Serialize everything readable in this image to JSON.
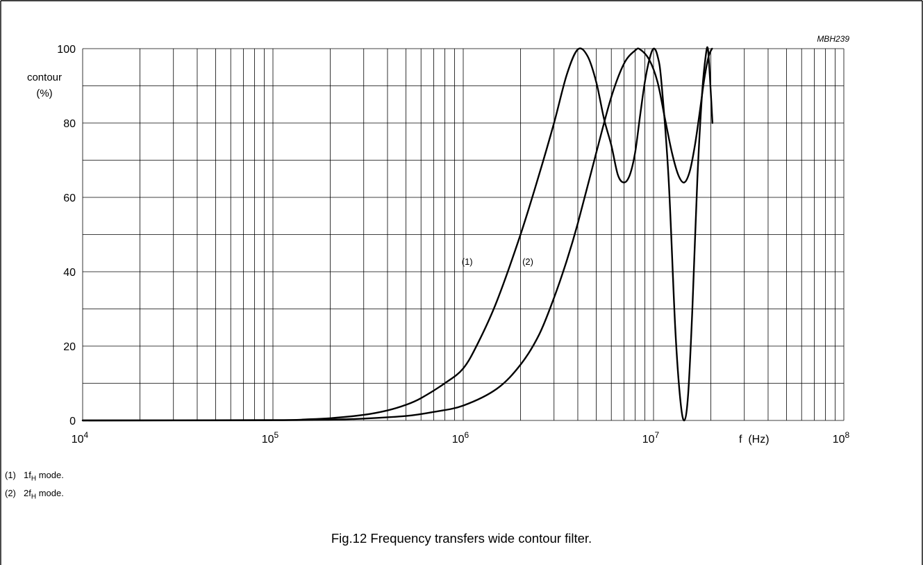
{
  "figure_code": "MBH239",
  "caption": "Fig.12  Frequency transfers wide contour filter.",
  "notes": [
    {
      "num": "(1)",
      "pre": "1f",
      "sub": "H",
      "post": " mode."
    },
    {
      "num": "(2)",
      "pre": "2f",
      "sub": "H",
      "post": " mode."
    }
  ],
  "chart_data": {
    "type": "line",
    "title": "",
    "ylabel_line1": "contour",
    "ylabel_line2": "(%)",
    "xlabel": "f  (Hz)",
    "x_scale": "log",
    "xlim": [
      10000,
      100000000
    ],
    "ylim": [
      0,
      100
    ],
    "x_ticks": [
      {
        "value": 10000,
        "base": "10",
        "exp": "4"
      },
      {
        "value": 100000,
        "base": "10",
        "exp": "5"
      },
      {
        "value": 1000000,
        "base": "10",
        "exp": "6"
      },
      {
        "value": 10000000,
        "base": "10",
        "exp": "7"
      },
      {
        "value": 100000000,
        "base": "10",
        "exp": "8"
      }
    ],
    "y_ticks": [
      0,
      20,
      40,
      60,
      80,
      100
    ],
    "grid": true,
    "series": [
      {
        "name": "(1)",
        "label": "(1)",
        "label_at": [
          1200000,
          35
        ],
        "points": [
          [
            10000,
            0
          ],
          [
            100000,
            0.1
          ],
          [
            150000,
            0.3
          ],
          [
            200000,
            0.6
          ],
          [
            300000,
            1.5
          ],
          [
            400000,
            2.7
          ],
          [
            500000,
            4.2
          ],
          [
            600000,
            6
          ],
          [
            800000,
            10
          ],
          [
            1000000,
            14
          ],
          [
            1200000,
            21
          ],
          [
            1500000,
            32
          ],
          [
            2000000,
            50
          ],
          [
            2500000,
            66
          ],
          [
            3000000,
            80
          ],
          [
            3500000,
            93
          ],
          [
            4000000,
            99.8
          ],
          [
            4500000,
            98
          ],
          [
            5000000,
            91
          ],
          [
            5500000,
            81
          ],
          [
            6000000,
            74
          ],
          [
            6500000,
            66
          ],
          [
            7000000,
            64
          ],
          [
            7500000,
            66
          ],
          [
            8000000,
            72
          ],
          [
            8500000,
            82
          ],
          [
            9000000,
            91
          ],
          [
            9500000,
            97
          ],
          [
            10000000,
            100
          ],
          [
            10500000,
            98
          ],
          [
            11000000,
            91
          ],
          [
            12000000,
            65
          ],
          [
            13000000,
            25
          ],
          [
            13800000,
            6
          ],
          [
            14500000,
            0
          ],
          [
            15200000,
            7
          ],
          [
            16000000,
            30
          ],
          [
            17000000,
            65
          ],
          [
            18000000,
            88
          ],
          [
            18800000,
            98
          ],
          [
            19300000,
            100
          ],
          [
            19800000,
            92
          ],
          [
            20400000,
            80
          ]
        ]
      },
      {
        "name": "(2)",
        "label": "(2)",
        "label_at": [
          2500000,
          35
        ],
        "points": [
          [
            10000,
            0
          ],
          [
            100000,
            0.05
          ],
          [
            200000,
            0.2
          ],
          [
            300000,
            0.5
          ],
          [
            500000,
            1.2
          ],
          [
            700000,
            2.3
          ],
          [
            1000000,
            4
          ],
          [
            1500000,
            8.5
          ],
          [
            2000000,
            15
          ],
          [
            2500000,
            23
          ],
          [
            3000000,
            33
          ],
          [
            3500000,
            43
          ],
          [
            4000000,
            53
          ],
          [
            5000000,
            72
          ],
          [
            6000000,
            87
          ],
          [
            7000000,
            96
          ],
          [
            8000000,
            99.5
          ],
          [
            8500000,
            99.8
          ],
          [
            9500000,
            97
          ],
          [
            10500000,
            91
          ],
          [
            11500000,
            81
          ],
          [
            12500000,
            72
          ],
          [
            13500000,
            66
          ],
          [
            14500000,
            64
          ],
          [
            15500000,
            67
          ],
          [
            16500000,
            74
          ],
          [
            17500000,
            83
          ],
          [
            18500000,
            92
          ],
          [
            19500000,
            98
          ],
          [
            20300000,
            100
          ]
        ]
      }
    ]
  }
}
